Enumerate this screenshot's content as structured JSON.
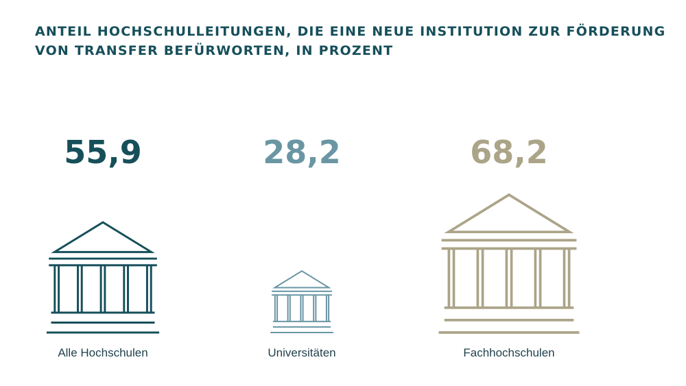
{
  "chart_data": {
    "type": "pictogram",
    "title_lines": [
      "ANTEIL HOCHSCHULLEITUNGEN, DIE EINE NEUE INSTITUTION ZUR FÖRDERUNG",
      "VON TRANSFER BEFÜRWORTEN, IN PROZENT"
    ],
    "categories": [
      "Alle Hochschulen",
      "Universitäten",
      "Fachhochschulen"
    ],
    "values": [
      55.9,
      28.2,
      68.2
    ],
    "value_labels": [
      "55,9",
      "28,2",
      "68,2"
    ],
    "colors": [
      "#164f5a",
      "#6a96a4",
      "#aca488"
    ],
    "title_color": "#164f5a",
    "icon": "building-columns-icon"
  }
}
